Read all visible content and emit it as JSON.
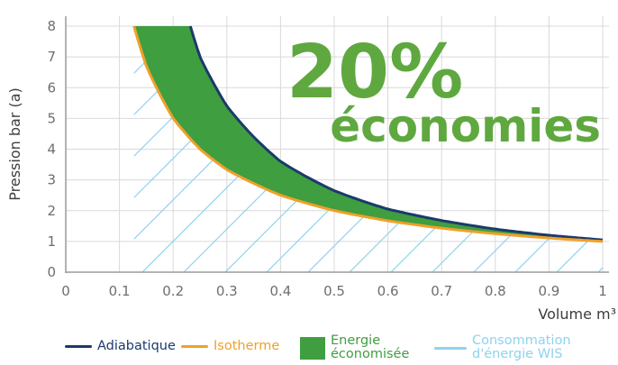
{
  "chart_data": {
    "type": "area",
    "xlabel": "Volume m³",
    "ylabel": "Pression bar (a)",
    "xlim": [
      0,
      1
    ],
    "ylim": [
      0,
      8
    ],
    "x_ticks": [
      "0",
      "0.1",
      "0.2",
      "0.3",
      "0.4",
      "0.5",
      "0.6",
      "0.7",
      "0.8",
      "0.9",
      "1"
    ],
    "y_ticks": [
      "0",
      "1",
      "2",
      "3",
      "4",
      "5",
      "6",
      "7",
      "8"
    ],
    "grid": true,
    "legend_placement": "bottom",
    "annotation": {
      "percent": "20%",
      "word": "économies"
    },
    "series": [
      {
        "name": "Adiabatique",
        "color": "#1b3a6b",
        "points": [
          [
            0.232,
            8.0
          ],
          [
            0.25,
            7.0
          ],
          [
            0.3,
            5.4
          ],
          [
            0.35,
            4.4
          ],
          [
            0.4,
            3.6
          ],
          [
            0.5,
            2.65
          ],
          [
            0.6,
            2.05
          ],
          [
            0.7,
            1.68
          ],
          [
            0.8,
            1.4
          ],
          [
            0.9,
            1.2
          ],
          [
            1.0,
            1.05
          ]
        ]
      },
      {
        "name": "Isotherme",
        "color": "#f0a02a",
        "points": [
          [
            0.127,
            8.0
          ],
          [
            0.15,
            6.7
          ],
          [
            0.2,
            5.0
          ],
          [
            0.25,
            4.0
          ],
          [
            0.3,
            3.33
          ],
          [
            0.4,
            2.5
          ],
          [
            0.5,
            2.0
          ],
          [
            0.6,
            1.67
          ],
          [
            0.7,
            1.43
          ],
          [
            0.8,
            1.25
          ],
          [
            0.9,
            1.11
          ],
          [
            1.0,
            1.0
          ]
        ]
      }
    ],
    "filled_areas": [
      {
        "name": "Energie économisée",
        "color": "#3f9e3f",
        "between": [
          "Isotherme",
          "Adiabatique"
        ]
      },
      {
        "name": "Consommation d'énergie WIS",
        "color": "#8ed3ee",
        "pattern": "hatch",
        "under": "Isotherme"
      }
    ]
  },
  "legend": [
    {
      "label_lines": [
        "Adiabatique"
      ],
      "color": "#1b3a6b",
      "kind": "line"
    },
    {
      "label_lines": [
        "Isotherme"
      ],
      "color": "#f0a02a",
      "kind": "line"
    },
    {
      "label_lines": [
        "Energie",
        "économisée"
      ],
      "color": "#3f9e3f",
      "kind": "swatch"
    },
    {
      "label_lines": [
        "Consommation",
        "d'énergie WIS"
      ],
      "color": "#8ed3ee",
      "kind": "line"
    }
  ]
}
